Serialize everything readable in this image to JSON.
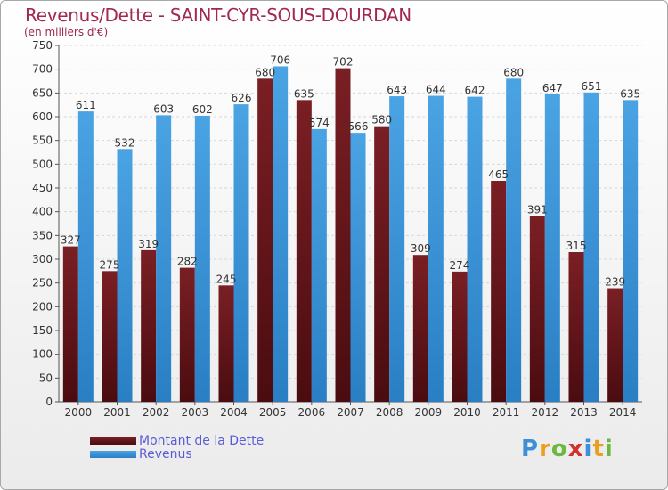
{
  "header": {
    "title": "Revenus/Dette - SAINT-CYR-SOUS-DOURDAN",
    "subtitle": "(en milliers d'€)"
  },
  "logo": {
    "text": "Proxiti",
    "letters": [
      {
        "char": "P",
        "color": "#3d8fd6"
      },
      {
        "char": "r",
        "color": "#e8a020"
      },
      {
        "char": "o",
        "color": "#6cb840"
      },
      {
        "char": "x",
        "color": "#d2312b"
      },
      {
        "char": "i",
        "color": "#3d8fd6"
      },
      {
        "char": "t",
        "color": "#e8a020"
      },
      {
        "char": "i",
        "color": "#6cb840"
      }
    ]
  },
  "colors": {
    "dette": "#7a1f24",
    "dette_dark": "#4a0c10",
    "revenus": "#4aa3e3",
    "revenus_dark": "#2a7fc4",
    "grid": "#d7d7d7",
    "tick_text": "#333333",
    "value_text": "#333333"
  },
  "chart_data": {
    "type": "bar",
    "title": "Revenus/Dette - SAINT-CYR-SOUS-DOURDAN",
    "subtitle": "(en milliers d'€)",
    "categories": [
      "2000",
      "2001",
      "2002",
      "2003",
      "2004",
      "2005",
      "2006",
      "2007",
      "2008",
      "2009",
      "2010",
      "2011",
      "2012",
      "2013",
      "2014"
    ],
    "series": [
      {
        "name": "Montant de la Dette",
        "values": [
          327,
          275,
          319,
          282,
          245,
          680,
          635,
          702,
          580,
          309,
          274,
          465,
          391,
          315,
          239
        ]
      },
      {
        "name": "Revenus",
        "values": [
          611,
          532,
          603,
          602,
          626,
          706,
          574,
          566,
          643,
          644,
          642,
          680,
          647,
          651,
          635
        ]
      }
    ],
    "ylim": [
      0,
      750
    ],
    "yticks": [
      0,
      50,
      100,
      150,
      200,
      250,
      300,
      350,
      400,
      450,
      500,
      550,
      600,
      650,
      700,
      750
    ],
    "grid": true,
    "legend_position": "bottom-left"
  }
}
